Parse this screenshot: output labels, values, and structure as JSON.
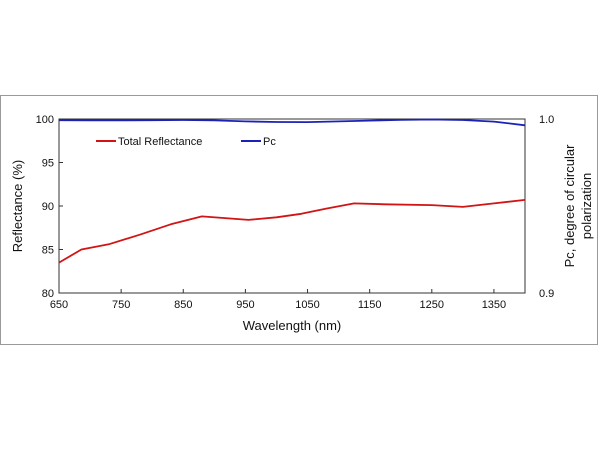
{
  "chart_data": {
    "type": "line",
    "title": "",
    "xlabel": "Wavelength (nm)",
    "ylabel": "Reflectance (%)",
    "y2label_lines": [
      "Pc, degree of circular",
      "polarization"
    ],
    "xlim": [
      650,
      1400
    ],
    "ylim": [
      80,
      100
    ],
    "y2lim": [
      0.9,
      1.0
    ],
    "xticks": [
      "650",
      "750",
      "850",
      "950",
      "1050",
      "1150",
      "1250",
      "1350"
    ],
    "yticks": [
      "80",
      "85",
      "90",
      "95",
      "100"
    ],
    "y2ticks": [
      "0.9",
      "1.0"
    ],
    "legend_position": "top-left",
    "grid": false,
    "series": [
      {
        "name": "Total Reflectance",
        "axis": "left",
        "color": "#d11414",
        "x": [
          650,
          686,
          730,
          780,
          830,
          880,
          955,
          1000,
          1040,
          1080,
          1125,
          1175,
          1250,
          1300,
          1350,
          1400
        ],
        "y": [
          83.5,
          85.0,
          85.6,
          86.7,
          87.9,
          88.8,
          88.4,
          88.7,
          89.1,
          89.7,
          90.3,
          90.2,
          90.1,
          89.9,
          90.3,
          90.7
        ]
      },
      {
        "name": "Pc",
        "axis": "right",
        "color": "#1c22b8",
        "x": [
          650,
          700,
          750,
          800,
          850,
          900,
          950,
          1000,
          1050,
          1100,
          1150,
          1200,
          1250,
          1300,
          1350,
          1400
        ],
        "y": [
          0.9993,
          0.9992,
          0.9992,
          0.9993,
          0.9994,
          0.9992,
          0.9986,
          0.9983,
          0.9982,
          0.9986,
          0.9991,
          0.9995,
          0.9997,
          0.9994,
          0.9985,
          0.9964
        ]
      }
    ]
  }
}
